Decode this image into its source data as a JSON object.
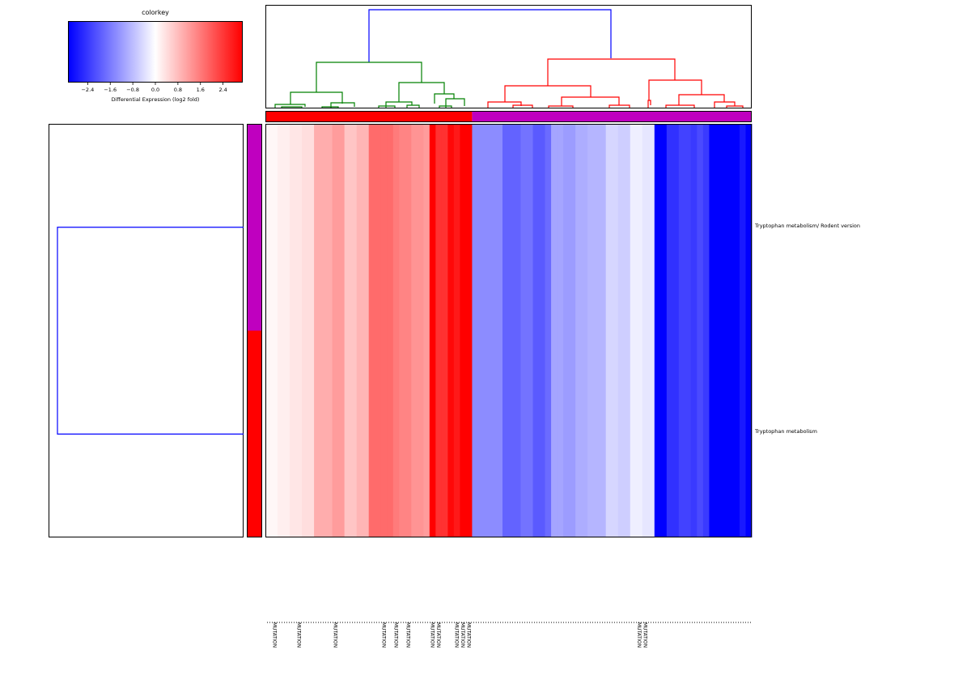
{
  "colorkey": {
    "title": "colorkey",
    "xlabel": "Differential Expression (log2 fold)",
    "ticks": [
      "−2.4",
      "−1.6",
      "−0.8",
      "0.0",
      "0.8",
      "1.6",
      "2.4"
    ],
    "tick_values": [
      -2.4,
      -1.6,
      -0.8,
      0.0,
      0.8,
      1.6,
      2.4
    ],
    "range": [
      -3.1,
      3.1
    ],
    "low_color": "#0000ff",
    "mid_color": "#ffffff",
    "high_color": "#ff0000"
  },
  "chart_data": {
    "type": "heatmap",
    "rows": [
      "Tryptophan metabolism/ Rodent version",
      "Tryptophan metabolism"
    ],
    "column_count": 80,
    "column_values": [
      0.1,
      0.1,
      0.2,
      0.2,
      0.3,
      0.3,
      0.4,
      0.4,
      1.0,
      1.0,
      1.0,
      1.2,
      1.2,
      0.7,
      0.7,
      0.9,
      0.9,
      1.8,
      1.8,
      1.8,
      1.8,
      1.6,
      1.5,
      1.5,
      1.3,
      1.3,
      1.2,
      3.1,
      2.5,
      2.5,
      3.0,
      2.8,
      3.1,
      3.1,
      -1.4,
      -1.4,
      -1.4,
      -1.4,
      -1.4,
      -1.9,
      -1.9,
      -1.9,
      -1.7,
      -1.7,
      -2.0,
      -2.0,
      -1.8,
      -1.1,
      -1.1,
      -1.2,
      -1.2,
      -1.0,
      -1.0,
      -0.9,
      -0.9,
      -0.9,
      -0.5,
      -0.5,
      -0.6,
      -0.6,
      -0.2,
      -0.2,
      -0.3,
      -0.3,
      -3.1,
      -3.1,
      -2.5,
      -2.5,
      -2.3,
      -2.3,
      -2.4,
      -2.2,
      -2.4,
      -3.1,
      -3.1,
      -3.1,
      -3.1,
      -3.1,
      -2.8,
      -3.1
    ],
    "column_groups": [
      "red",
      "magenta"
    ],
    "column_group_sizes": [
      34,
      46
    ],
    "row_groups": [
      "magenta",
      "red"
    ],
    "group_colors": {
      "red": "#ff0000",
      "magenta": "#bf00bf"
    },
    "column_labels": [
      {
        "col": 1,
        "text": "MUTATION"
      },
      {
        "col": 5,
        "text": "MUTATION"
      },
      {
        "col": 11,
        "text": "MUTATION"
      },
      {
        "col": 19,
        "text": "MUTATION"
      },
      {
        "col": 21,
        "text": "MUTATION"
      },
      {
        "col": 23,
        "text": "MUTATION"
      },
      {
        "col": 27,
        "text": "MUTATION"
      },
      {
        "col": 28,
        "text": "MUTATION"
      },
      {
        "col": 31,
        "text": "MUTATION"
      },
      {
        "col": 32,
        "text": "MUTATION"
      },
      {
        "col": 33,
        "text": "MUTATION"
      },
      {
        "col": 61,
        "text": "MUTATION"
      },
      {
        "col": 62,
        "text": "MUTATION"
      }
    ],
    "dendrogram_colors": {
      "root": "#0000ff",
      "left": "#008000",
      "right": "#ff0000",
      "row": "#0000ff"
    }
  }
}
